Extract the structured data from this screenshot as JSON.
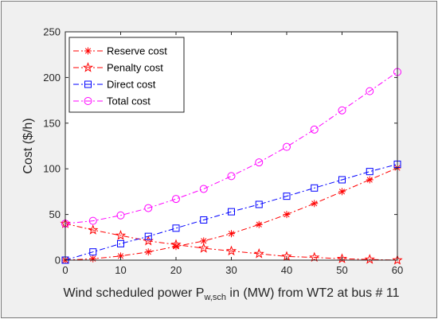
{
  "chart_data": {
    "type": "line",
    "x": [
      0,
      5,
      10,
      15,
      20,
      25,
      30,
      35,
      40,
      45,
      50,
      55,
      60
    ],
    "xlim": [
      0,
      60
    ],
    "ylim": [
      0,
      250
    ],
    "xticks": [
      0,
      10,
      20,
      30,
      40,
      50,
      60
    ],
    "yticks": [
      0,
      50,
      100,
      150,
      200,
      250
    ],
    "xlabel_main": "Wind scheduled power P",
    "xlabel_sub": "w,sch",
    "xlabel_tail": " in (MW) from WT2 at bus # 11",
    "ylabel": "Cost ($/h)",
    "legend_position": "top-left",
    "grid": false,
    "series": [
      {
        "name": "Reserve cost",
        "color": "#ff0000",
        "marker": "asterisk",
        "values": [
          0,
          1.5,
          4.5,
          9,
          15,
          21,
          29,
          39,
          50,
          62,
          75,
          88,
          101
        ]
      },
      {
        "name": "Penalty cost",
        "color": "#ff0000",
        "marker": "star",
        "values": [
          40,
          33,
          27,
          21,
          17,
          13,
          10,
          7,
          4,
          3,
          1.5,
          0.8,
          0
        ]
      },
      {
        "name": "Direct cost",
        "color": "#0000ff",
        "marker": "square",
        "values": [
          0,
          9,
          18,
          26,
          35,
          44,
          53,
          61,
          70,
          79,
          88,
          97,
          105
        ]
      },
      {
        "name": "Total cost",
        "color": "#ff00ff",
        "marker": "circle",
        "values": [
          40,
          43,
          49,
          57,
          67,
          78,
          92,
          107,
          124,
          143,
          164,
          185,
          206
        ]
      }
    ]
  }
}
